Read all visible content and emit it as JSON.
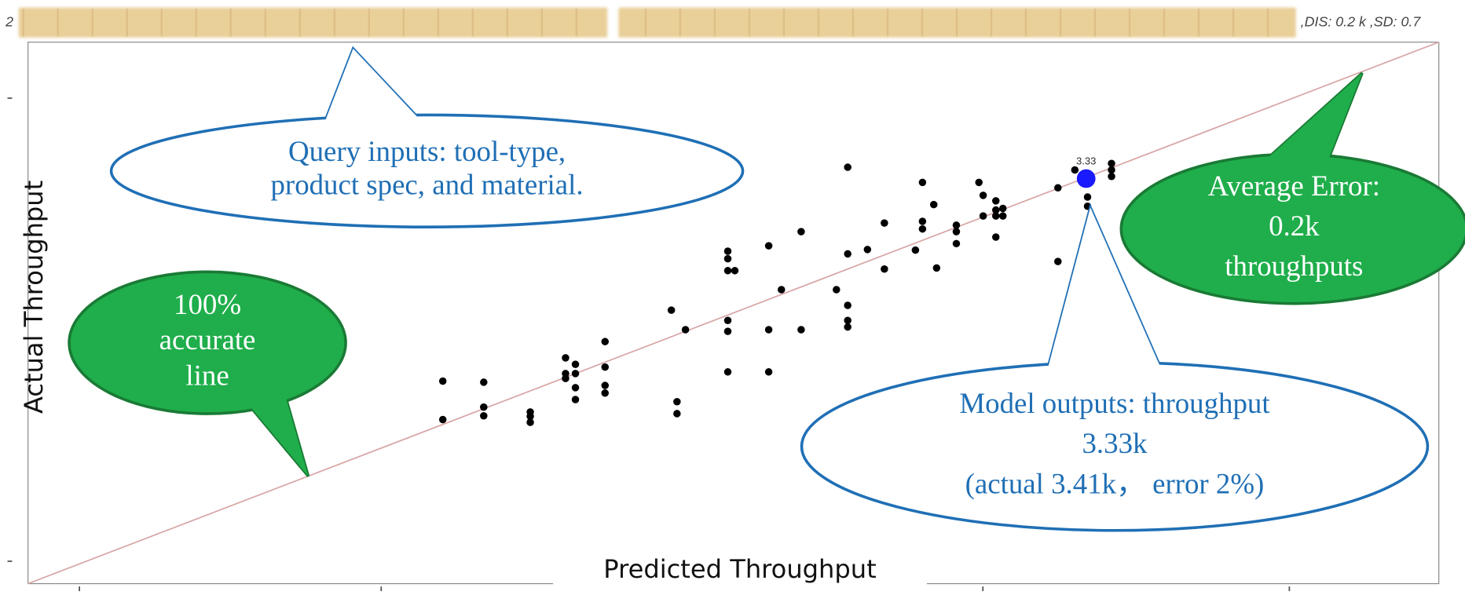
{
  "chart_data": {
    "type": "scatter",
    "header": {
      "left": "2",
      "right": ",DIS: 0.2 k ,SD: 0.7"
    },
    "x_label": "Predicted Throughput",
    "y_label": "Actual Throughput",
    "xlim": [
      0,
      100
    ],
    "ylim": [
      0,
      100
    ],
    "reference_line_color": "#d9a8a8",
    "series": [
      {
        "color": "#000000",
        "x": [
          29.4,
          29.4,
          32.3,
          32.3,
          32.3,
          35.6,
          35.6,
          35.6,
          38.1,
          38.1,
          38.1,
          38.8,
          38.8,
          38.8,
          38.8,
          40.9,
          40.9,
          40.9,
          40.9,
          45.6,
          46.0,
          46.0,
          46.6,
          49.6,
          49.6,
          49.6,
          50.1,
          49.6,
          49.6,
          49.6,
          52.5,
          52.5,
          52.5,
          53.4,
          54.8,
          54.8,
          57.3,
          58.1,
          58.1,
          58.1,
          58.1,
          58.1,
          59.5,
          60.7,
          60.7,
          63.4,
          63.4,
          62.9,
          63.4,
          64.2,
          64.4,
          65.8,
          65.8,
          65.8,
          67.4,
          67.7,
          67.7,
          68.6,
          68.6,
          68.6,
          68.6,
          69.1,
          69.1,
          73.0,
          73.0,
          74.2,
          75.1,
          75.1,
          75.1,
          76.8,
          76.8,
          76.8
        ],
        "values": [
          37.4,
          30.3,
          37.2,
          32.6,
          31.0,
          31.7,
          30.9,
          29.8,
          41.7,
          38.8,
          37.9,
          40.5,
          38.8,
          36.2,
          34.0,
          44.7,
          40.0,
          36.6,
          35.2,
          50.5,
          33.6,
          31.4,
          46.9,
          61.4,
          60.0,
          57.8,
          57.8,
          48.6,
          46.6,
          39.1,
          62.4,
          46.9,
          39.1,
          54.3,
          65.0,
          46.9,
          54.3,
          76.9,
          60.9,
          51.4,
          48.6,
          47.4,
          61.7,
          66.6,
          58.1,
          74.1,
          66.9,
          61.6,
          65.5,
          70.0,
          58.3,
          66.2,
          65.0,
          62.8,
          74.1,
          71.7,
          67.9,
          70.7,
          69.0,
          67.9,
          64.0,
          69.3,
          67.9,
          73.1,
          59.5,
          76.4,
          74.1,
          71.4,
          69.7,
          77.6,
          76.4,
          75.2
        ]
      },
      {
        "color": "#1a1aff",
        "x": [
          75.0
        ],
        "values": [
          74.8
        ]
      }
    ],
    "point_label": "3.33",
    "callouts": [
      {
        "style": "white",
        "lines": [
          "Query inputs: tool-type,",
          "product spec, and material."
        ]
      },
      {
        "style": "green",
        "lines": [
          "100%",
          "accurate",
          "line"
        ]
      },
      {
        "style": "green",
        "lines": [
          "Average Error:",
          "0.2k",
          "throughputs"
        ]
      },
      {
        "style": "white",
        "lines": [
          "Model outputs: throughput",
          "3.33k",
          "(actual 3.41k， error 2%)"
        ]
      }
    ]
  }
}
